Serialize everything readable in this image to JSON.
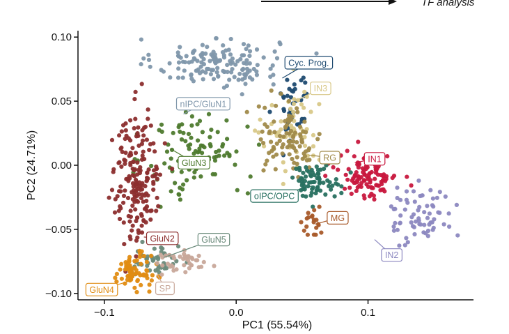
{
  "header": {
    "annotation_text": "TF analysis"
  },
  "chart_data": {
    "type": "scatter",
    "title": "",
    "xlabel": "PC1 (55.54%)",
    "ylabel": "PC2 (24.71%)",
    "xlim": [
      -0.12,
      0.18
    ],
    "ylim": [
      -0.105,
      0.105
    ],
    "xticks": [
      -0.1,
      0.0,
      0.1
    ],
    "xtick_labels": [
      "−0.1",
      "0.0",
      "0.1"
    ],
    "yticks": [
      0.1,
      0.05,
      0.0,
      -0.05,
      -0.1
    ],
    "ytick_labels": [
      "0.10",
      "0.05",
      "0.00",
      "−0.05",
      "−0.10"
    ],
    "grid": false,
    "legend": "none (clusters labeled directly)",
    "clusters": [
      {
        "name": "nIPC/GluN1",
        "color": "#8097ab",
        "center": [
          -0.015,
          0.08
        ],
        "spread": [
          0.038,
          0.015
        ],
        "count": 150,
        "label_pos": [
          -0.025,
          0.048
        ],
        "anchor": [
          -0.04,
          0.04
        ]
      },
      {
        "name": "Cyc. Prog.",
        "color": "#1e4a70",
        "center": [
          0.043,
          0.048
        ],
        "spread": [
          0.01,
          0.025
        ],
        "count": 40,
        "label_pos": [
          0.055,
          0.08
        ],
        "anchor": [
          0.035,
          0.068
        ]
      },
      {
        "name": "IN3",
        "color": "#d8c888",
        "center": [
          0.045,
          0.025
        ],
        "spread": [
          0.02,
          0.03
        ],
        "count": 55,
        "label_pos": [
          0.064,
          0.06
        ],
        "anchor": [
          0.045,
          0.05
        ]
      },
      {
        "name": "GluN3",
        "color": "#4e7a2e",
        "center": [
          -0.03,
          0.01
        ],
        "spread": [
          0.03,
          0.03
        ],
        "count": 110,
        "label_pos": [
          -0.032,
          0.002
        ],
        "anchor": [
          -0.05,
          0.013
        ]
      },
      {
        "name": "RG",
        "color": "#a08a4a",
        "center": [
          0.04,
          0.02
        ],
        "spread": [
          0.02,
          0.022
        ],
        "count": 90,
        "label_pos": [
          0.071,
          0.006
        ],
        "anchor": [
          0.055,
          0.008
        ]
      },
      {
        "name": "IN1",
        "color": "#c8183e",
        "center": [
          0.1,
          -0.008
        ],
        "spread": [
          0.018,
          0.014
        ],
        "count": 110,
        "label_pos": [
          0.105,
          0.005
        ],
        "anchor": [
          0.09,
          0.002
        ]
      },
      {
        "name": "oIPC/OPC",
        "color": "#287060",
        "center": [
          0.06,
          -0.012
        ],
        "spread": [
          0.015,
          0.01
        ],
        "count": 70,
        "label_pos": [
          0.029,
          -0.024
        ],
        "anchor": [
          0.058,
          -0.016
        ]
      },
      {
        "name": "MG",
        "color": "#a85a2a",
        "center": [
          0.057,
          -0.045
        ],
        "spread": [
          0.007,
          0.008
        ],
        "count": 20,
        "label_pos": [
          0.077,
          -0.041
        ],
        "anchor": [
          0.06,
          -0.046
        ]
      },
      {
        "name": "IN2",
        "color": "#8c88c0",
        "center": [
          0.14,
          -0.04
        ],
        "spread": [
          0.02,
          0.02
        ],
        "count": 70,
        "label_pos": [
          0.118,
          -0.07
        ],
        "anchor": [
          0.105,
          -0.058
        ]
      },
      {
        "name": "GluN2",
        "color": "#8c2e2e",
        "center": [
          -0.075,
          -0.01
        ],
        "spread": [
          0.015,
          0.042
        ],
        "count": 190,
        "label_pos": [
          -0.056,
          -0.057
        ],
        "anchor": [
          -0.07,
          -0.056
        ]
      },
      {
        "name": "GluN5",
        "color": "#6a8a7a",
        "center": [
          -0.06,
          -0.075
        ],
        "spread": [
          0.014,
          0.01
        ],
        "count": 45,
        "label_pos": [
          -0.017,
          -0.058
        ],
        "anchor": [
          -0.055,
          -0.072
        ]
      },
      {
        "name": "GluN4",
        "color": "#e08c12",
        "center": [
          -0.078,
          -0.083
        ],
        "spread": [
          0.011,
          0.011
        ],
        "count": 75,
        "label_pos": [
          -0.102,
          -0.097
        ],
        "anchor": [
          -0.08,
          -0.09
        ]
      },
      {
        "name": "SP",
        "color": "#c8a89a",
        "center": [
          -0.04,
          -0.076
        ],
        "spread": [
          0.018,
          0.008
        ],
        "count": 40,
        "label_pos": [
          -0.054,
          -0.096
        ],
        "anchor": [
          -0.06,
          -0.085
        ]
      }
    ]
  }
}
